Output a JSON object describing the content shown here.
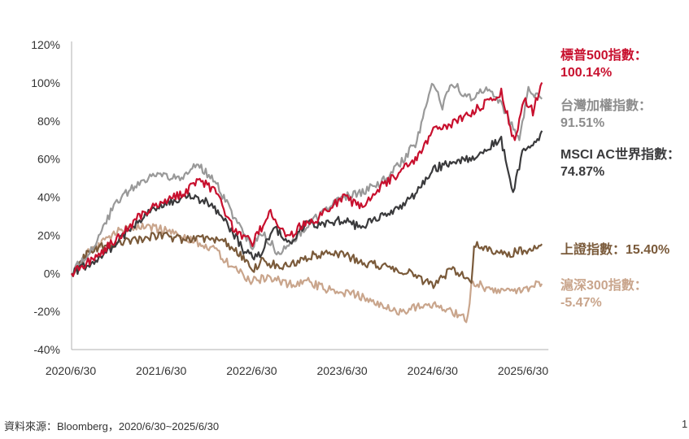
{
  "chart_data": {
    "type": "line",
    "x": [
      "2020/6/30",
      "2021/6/30",
      "2022/6/30",
      "2023/6/30",
      "2024/6/30",
      "2025/6/30"
    ],
    "y_ticks": [
      "120%",
      "100%",
      "80%",
      "60%",
      "40%",
      "20%",
      "0%",
      "-20%",
      "-40%"
    ],
    "ylim": [
      -40,
      120
    ],
    "grid": false,
    "legend_position": "right",
    "series": [
      {
        "name": "標普500指數：",
        "final_label": "100.14%",
        "color": "#c8102e",
        "points": [
          [
            0,
            0
          ],
          [
            0.25,
            8
          ],
          [
            0.5,
            18
          ],
          [
            0.75,
            30
          ],
          [
            1.0,
            38
          ],
          [
            1.25,
            42
          ],
          [
            1.4,
            50
          ],
          [
            1.6,
            42
          ],
          [
            1.8,
            22
          ],
          [
            2.0,
            16
          ],
          [
            2.2,
            32
          ],
          [
            2.4,
            18
          ],
          [
            2.5,
            24
          ],
          [
            2.7,
            28
          ],
          [
            3.0,
            40
          ],
          [
            3.2,
            35
          ],
          [
            3.4,
            45
          ],
          [
            3.6,
            52
          ],
          [
            3.8,
            60
          ],
          [
            4.0,
            75
          ],
          [
            4.2,
            78
          ],
          [
            4.4,
            84
          ],
          [
            4.6,
            90
          ],
          [
            4.75,
            95
          ],
          [
            4.9,
            68
          ],
          [
            5.0,
            92
          ],
          [
            5.1,
            85
          ],
          [
            5.2,
            100.14
          ]
        ]
      },
      {
        "name": "台灣加權指數：",
        "final_label": "91.51%",
        "color": "#999999",
        "points": [
          [
            0,
            0
          ],
          [
            0.25,
            15
          ],
          [
            0.5,
            38
          ],
          [
            0.75,
            48
          ],
          [
            1.0,
            52
          ],
          [
            1.2,
            50
          ],
          [
            1.4,
            57
          ],
          [
            1.6,
            48
          ],
          [
            1.8,
            28
          ],
          [
            2.0,
            14
          ],
          [
            2.1,
            22
          ],
          [
            2.3,
            10
          ],
          [
            2.5,
            20
          ],
          [
            2.7,
            30
          ],
          [
            3.0,
            40
          ],
          [
            3.2,
            42
          ],
          [
            3.5,
            50
          ],
          [
            3.8,
            68
          ],
          [
            4.0,
            100
          ],
          [
            4.1,
            88
          ],
          [
            4.2,
            100
          ],
          [
            4.4,
            92
          ],
          [
            4.6,
            98
          ],
          [
            4.8,
            85
          ],
          [
            4.95,
            70
          ],
          [
            5.05,
            96
          ],
          [
            5.2,
            91.51
          ]
        ]
      },
      {
        "name": "MSCI AC世界指數：",
        "final_label": "74.87%",
        "color": "#3a3a3c",
        "points": [
          [
            0,
            0
          ],
          [
            0.25,
            6
          ],
          [
            0.5,
            16
          ],
          [
            0.75,
            28
          ],
          [
            1.0,
            36
          ],
          [
            1.3,
            40
          ],
          [
            1.5,
            38
          ],
          [
            1.7,
            28
          ],
          [
            1.9,
            12
          ],
          [
            2.05,
            8
          ],
          [
            2.25,
            24
          ],
          [
            2.4,
            16
          ],
          [
            2.6,
            26
          ],
          [
            2.8,
            26
          ],
          [
            3.0,
            28
          ],
          [
            3.2,
            24
          ],
          [
            3.4,
            30
          ],
          [
            3.6,
            34
          ],
          [
            3.8,
            42
          ],
          [
            4.0,
            55
          ],
          [
            4.2,
            58
          ],
          [
            4.4,
            60
          ],
          [
            4.6,
            66
          ],
          [
            4.75,
            70
          ],
          [
            4.88,
            42
          ],
          [
            5.0,
            66
          ],
          [
            5.1,
            66
          ],
          [
            5.2,
            74.87
          ]
        ]
      },
      {
        "name": "上證指數：",
        "final_label": "15.40%",
        "color": "#7a5a3a",
        "points": [
          [
            0,
            0
          ],
          [
            0.2,
            12
          ],
          [
            0.5,
            16
          ],
          [
            0.75,
            18
          ],
          [
            1.0,
            20
          ],
          [
            1.2,
            18
          ],
          [
            1.5,
            18
          ],
          [
            1.7,
            16
          ],
          [
            1.9,
            8
          ],
          [
            2.0,
            2
          ],
          [
            2.1,
            6
          ],
          [
            2.3,
            4
          ],
          [
            2.5,
            6
          ],
          [
            2.7,
            10
          ],
          [
            3.0,
            10
          ],
          [
            3.2,
            6
          ],
          [
            3.5,
            3
          ],
          [
            3.7,
            1
          ],
          [
            3.8,
            -2
          ],
          [
            4.0,
            -6
          ],
          [
            4.1,
            -2
          ],
          [
            4.2,
            2
          ],
          [
            4.3,
            0
          ],
          [
            4.42,
            -4
          ],
          [
            4.45,
            16
          ],
          [
            4.6,
            12
          ],
          [
            4.8,
            10
          ],
          [
            5.0,
            12
          ],
          [
            5.2,
            15.4
          ]
        ]
      },
      {
        "name": "滬深300指數：",
        "final_label": "-5.47%",
        "color": "#c9a58c",
        "points": [
          [
            0,
            0
          ],
          [
            0.2,
            12
          ],
          [
            0.5,
            22
          ],
          [
            0.75,
            25
          ],
          [
            1.0,
            23
          ],
          [
            1.2,
            20
          ],
          [
            1.4,
            16
          ],
          [
            1.6,
            12
          ],
          [
            1.8,
            2
          ],
          [
            2.0,
            -4
          ],
          [
            2.2,
            -2
          ],
          [
            2.4,
            -6
          ],
          [
            2.6,
            -4
          ],
          [
            2.8,
            -8
          ],
          [
            3.0,
            -10
          ],
          [
            3.2,
            -12
          ],
          [
            3.4,
            -16
          ],
          [
            3.6,
            -20
          ],
          [
            3.8,
            -18
          ],
          [
            4.0,
            -16
          ],
          [
            4.2,
            -20
          ],
          [
            4.38,
            -24
          ],
          [
            4.42,
            -4
          ],
          [
            4.6,
            -8
          ],
          [
            4.8,
            -10
          ],
          [
            5.0,
            -8
          ],
          [
            5.2,
            -5.47
          ]
        ]
      }
    ]
  },
  "source_note": "資料來源：Bloomberg，2020/6/30~2025/6/30",
  "page_number": "1"
}
